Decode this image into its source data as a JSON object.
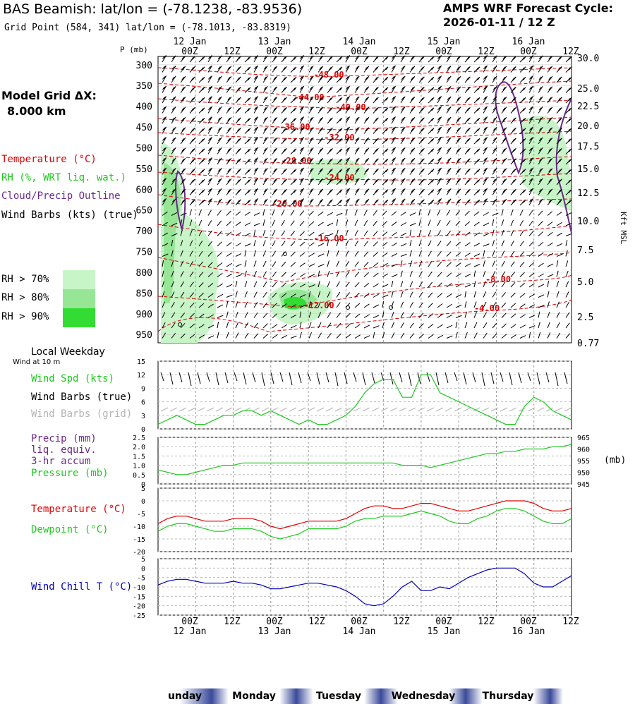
{
  "header": {
    "title": "BAS Beamish:  lat/lon = (-78.1238, -83.9536)",
    "subtitle": "Grid Point (584, 341) lat/lon = (-78.1013, -83.8319)",
    "cycle_label": "AMPS WRF Forecast Cycle:",
    "cycle_value": "2026-01-11 / 12  Z"
  },
  "left_labels": {
    "model_grid": "Model Grid ΔX:",
    "model_grid_value": "8.000 km",
    "temperature": "Temperature (°C)",
    "rh": "RH (%, WRT liq. wat.)",
    "cloud": "Cloud/Precip Outline",
    "wind_barbs": "Wind Barbs (kts) (true)",
    "rh70": "RH > 70%",
    "rh80": "RH > 80%",
    "rh90": "RH > 90%",
    "local_weekday": "Local Weekday",
    "wind_at_10m": "Wind at 10 m",
    "wind_spd": "Wind Spd (kts)",
    "wind_barbs_true": "Wind Barbs (true)",
    "wind_barbs_grid": "Wind Barbs (grid)",
    "precip": "Precip (mm)",
    "liq_equiv": "liq. equiv.",
    "accum": "3-hr accum",
    "pressure": "Pressure (mb)",
    "temp2": "Temperature (°C)",
    "dewpoint": "Dewpoint (°C)",
    "windchill": "Wind Chill T (°C)"
  },
  "colors": {
    "temperature": "#e00000",
    "rh70": "#c8f5c8",
    "rh80": "#96e696",
    "rh90": "#32dc32",
    "cloud": "#6a2a8a",
    "green_line": "#1ec81e",
    "blue_line": "#0000b4",
    "weekday_band": "#3a4a9a"
  },
  "time_axis": {
    "top_dates": [
      "12 Jan",
      "13 Jan",
      "14 Jan",
      "15 Jan",
      "16 Jan"
    ],
    "hours": [
      "00Z",
      "12Z",
      "00Z",
      "12Z",
      "00Z",
      "12Z",
      "00Z",
      "12Z",
      "00Z",
      "12Z"
    ],
    "weekdays": [
      "unday",
      "Monday",
      "Tuesday",
      "Wednesday",
      "Thursday"
    ]
  },
  "pressure_axis": {
    "unit_label": "P (mb)",
    "levels": [
      "300",
      "350",
      "400",
      "450",
      "500",
      "550",
      "600",
      "650",
      "700",
      "750",
      "800",
      "850",
      "900",
      "950"
    ],
    "kft_ticks": [
      "30.0",
      "25.0",
      "22.5",
      "20.0",
      "17.5",
      "15.0",
      "12.5",
      "10.0",
      "7.5",
      "5.0",
      "2.5",
      "0.77"
    ],
    "kft_label": "Kft MSL"
  },
  "isotherm_labels": [
    "-48.00",
    "-44.00",
    "-40.00",
    "-36.00",
    "-32.00",
    "-28.00",
    "-24.00",
    "-20.00",
    "-16.00",
    "-12.00",
    "-8.00",
    "-4.00"
  ],
  "chart_data": [
    {
      "type": "line",
      "title": "Wind Spd (kts)",
      "ylabel": "",
      "ylim": [
        0,
        15
      ],
      "yticks": [
        "0",
        "3",
        "6",
        "9",
        "12",
        "15"
      ],
      "x_hours": [
        0,
        6,
        12,
        18,
        24,
        30,
        36,
        42,
        48,
        54,
        60,
        66,
        72,
        78,
        84,
        90,
        96,
        102,
        108,
        114,
        120,
        126,
        132,
        138,
        144,
        150,
        156,
        162,
        168,
        174,
        180,
        186,
        192,
        198,
        204,
        210,
        216,
        222,
        228,
        234,
        240,
        246,
        252,
        258,
        264
      ],
      "series": [
        {
          "name": "Wind Spd (kts)",
          "values": [
            1,
            2,
            3,
            2,
            1,
            1,
            2,
            3,
            3,
            4,
            4,
            3,
            4,
            3,
            2,
            1,
            2,
            1,
            1,
            2,
            3,
            5,
            8,
            10,
            11,
            11,
            7,
            7,
            12,
            12,
            8,
            7,
            6,
            5,
            4,
            3,
            2,
            1,
            1,
            5,
            7,
            6,
            4,
            3,
            2
          ]
        }
      ]
    },
    {
      "type": "line",
      "title": "Pressure (mb)",
      "y2label": "(mb)",
      "ylim": [
        0,
        2.5
      ],
      "yticks": [
        "0",
        "0.5",
        "1.0",
        "1.5",
        "2.0",
        "2.5"
      ],
      "y2lim": [
        945,
        965
      ],
      "y2ticks": [
        "945",
        "950",
        "955",
        "960",
        "965"
      ],
      "series": [
        {
          "name": "Pressure (mb)",
          "values": [
            951,
            950,
            949,
            949,
            950,
            951,
            952,
            953,
            953,
            954,
            954,
            954,
            954,
            954,
            954,
            954,
            954,
            954,
            954,
            954,
            954,
            954,
            954,
            954,
            954,
            954,
            953,
            953,
            953,
            952,
            953,
            954,
            955,
            956,
            957,
            958,
            958,
            959,
            959,
            960,
            960,
            960,
            961,
            961,
            962
          ]
        }
      ]
    },
    {
      "type": "line",
      "title": "Temperature / Dewpoint (°C)",
      "ylim": [
        -20,
        5
      ],
      "yticks": [
        "5",
        "0",
        "-5",
        "-10",
        "-15",
        "-20"
      ],
      "series": [
        {
          "name": "Temperature (°C)",
          "values": [
            -9,
            -7,
            -6,
            -6,
            -7,
            -8,
            -8,
            -8,
            -7,
            -7,
            -7,
            -8,
            -10,
            -11,
            -10,
            -9,
            -8,
            -8,
            -8,
            -8,
            -7,
            -5,
            -3,
            -2,
            -2,
            -3,
            -3,
            -2,
            -1,
            -1,
            -2,
            -3,
            -4,
            -4,
            -3,
            -2,
            -1,
            0,
            0,
            0,
            -1,
            -3,
            -4,
            -4,
            -3
          ]
        },
        {
          "name": "Dewpoint (°C)",
          "values": [
            -12,
            -10,
            -9,
            -9,
            -10,
            -11,
            -12,
            -12,
            -11,
            -11,
            -11,
            -12,
            -14,
            -15,
            -14,
            -13,
            -11,
            -11,
            -11,
            -11,
            -10,
            -8,
            -7,
            -7,
            -6,
            -6,
            -6,
            -5,
            -4,
            -5,
            -6,
            -8,
            -9,
            -9,
            -7,
            -6,
            -4,
            -3,
            -3,
            -4,
            -6,
            -8,
            -9,
            -9,
            -7
          ]
        }
      ]
    },
    {
      "type": "line",
      "title": "Wind Chill T (°C)",
      "ylim": [
        -25,
        5
      ],
      "yticks": [
        "5",
        "0",
        "-5",
        "-10",
        "-15",
        "-20",
        "-25"
      ],
      "series": [
        {
          "name": "Wind Chill T (°C)",
          "values": [
            -9,
            -7,
            -6,
            -6,
            -7,
            -8,
            -8,
            -8,
            -7,
            -8,
            -8,
            -9,
            -11,
            -11,
            -10,
            -9,
            -8,
            -8,
            -9,
            -10,
            -12,
            -15,
            -19,
            -20,
            -19,
            -15,
            -10,
            -7,
            -12,
            -12,
            -10,
            -11,
            -8,
            -5,
            -3,
            -1,
            0,
            0,
            0,
            -3,
            -8,
            -10,
            -10,
            -7,
            -4
          ]
        }
      ]
    }
  ]
}
